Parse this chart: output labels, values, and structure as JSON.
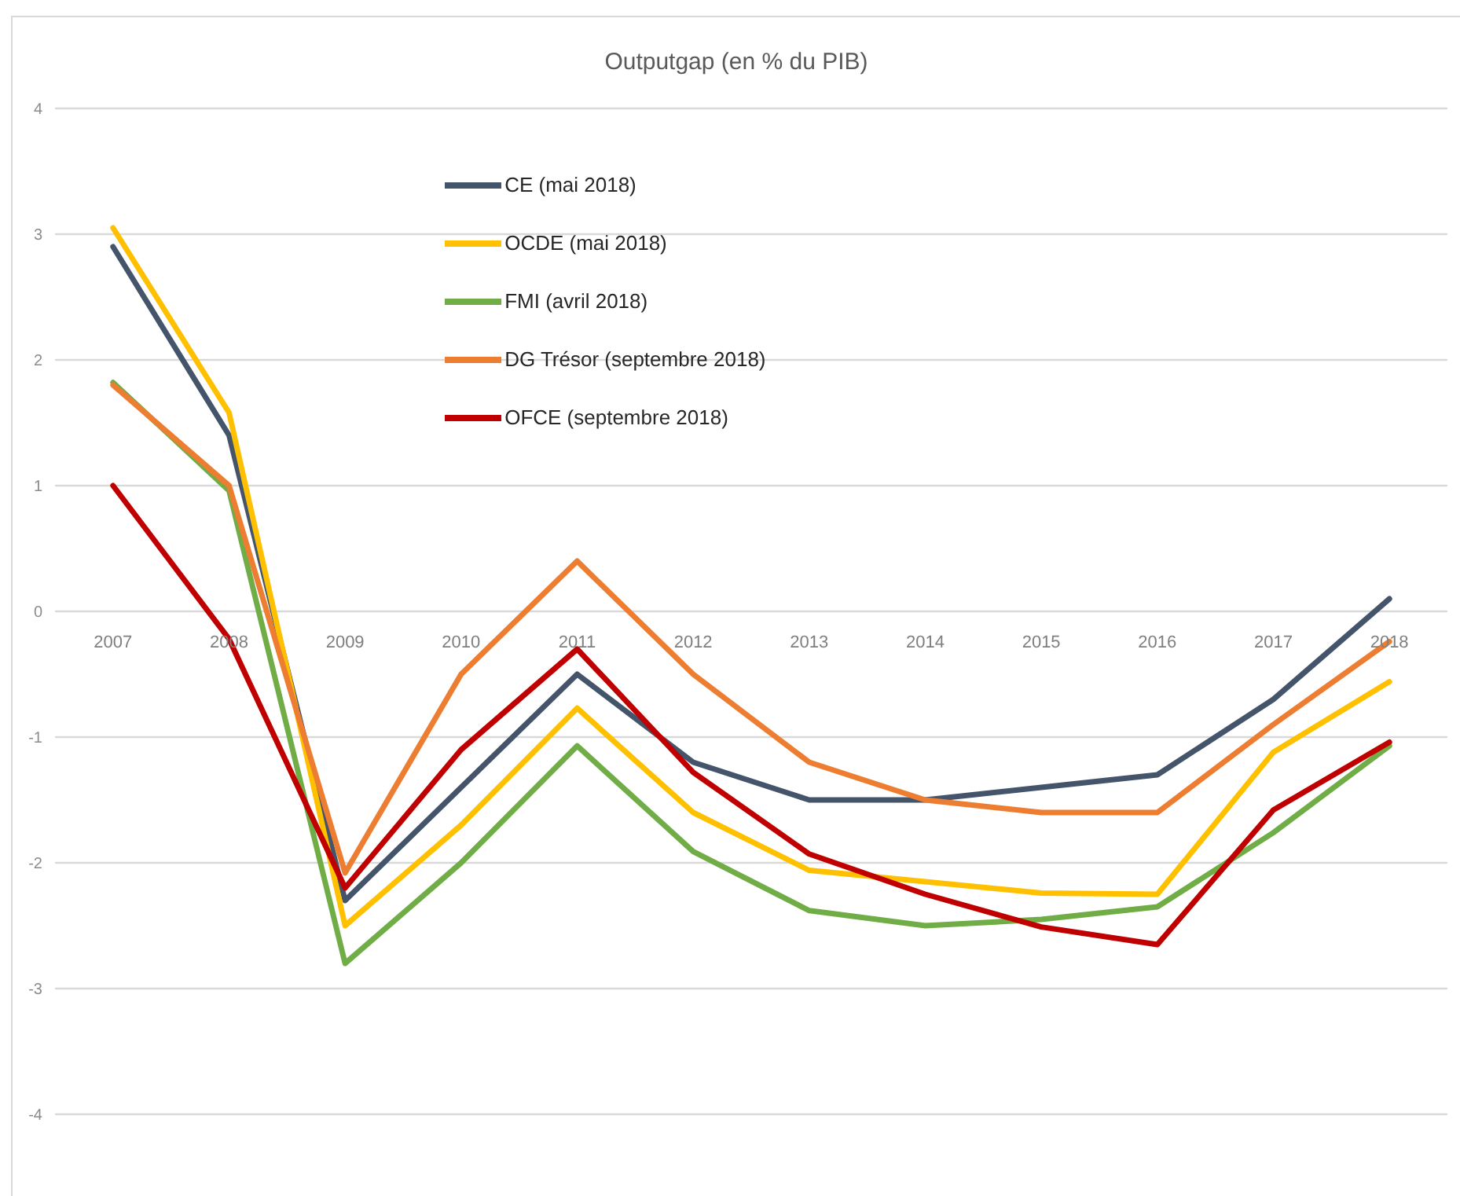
{
  "chart_data": {
    "type": "line",
    "title": "Outputgap (en % du PIB)",
    "categories": [
      "2007",
      "2008",
      "2009",
      "2010",
      "2011",
      "2012",
      "2013",
      "2014",
      "2015",
      "2016",
      "2017",
      "2018"
    ],
    "series": [
      {
        "name": "CE (mai 2018)",
        "color": "#44546a",
        "values": [
          2.9,
          1.4,
          -2.3,
          -1.4,
          -0.5,
          -1.2,
          -1.5,
          -1.5,
          -1.4,
          -1.3,
          -0.7,
          0.1
        ]
      },
      {
        "name": "OCDE (mai 2018)",
        "color": "#ffc000",
        "values": [
          3.05,
          1.58,
          -2.5,
          -1.7,
          -0.77,
          -1.6,
          -2.06,
          -2.15,
          -2.24,
          -2.25,
          -1.12,
          -0.56
        ]
      },
      {
        "name": "FMI (avril 2018)",
        "color": "#70ad47",
        "values": [
          1.82,
          0.96,
          -2.8,
          -2.0,
          -1.07,
          -1.91,
          -2.38,
          -2.5,
          -2.45,
          -2.35,
          -1.76,
          -1.07
        ]
      },
      {
        "name": "DG Trésor (septembre 2018)",
        "color": "#ed7d31",
        "values": [
          1.8,
          1.0,
          -2.08,
          -0.5,
          0.4,
          -0.5,
          -1.2,
          -1.5,
          -1.6,
          -1.6,
          -0.9,
          -0.24
        ]
      },
      {
        "name": "OFCE (septembre 2018)",
        "color": "#c00000",
        "values": [
          1.0,
          -0.22,
          -2.2,
          -1.1,
          -0.3,
          -1.28,
          -1.93,
          -2.25,
          -2.51,
          -2.65,
          -1.58,
          -1.04
        ]
      }
    ],
    "ylim": [
      -4,
      4
    ],
    "yticks": [
      -4,
      -3,
      -2,
      -1,
      0,
      1,
      2,
      3,
      4
    ],
    "grid": "y",
    "legend": "top left"
  }
}
